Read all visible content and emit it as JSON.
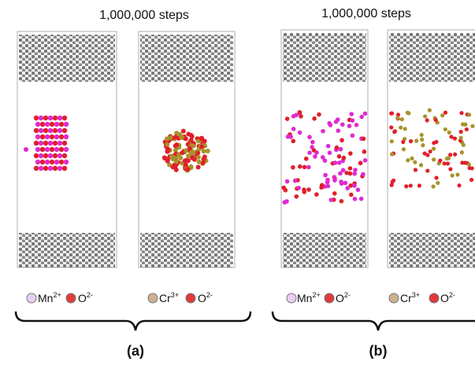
{
  "panels": [
    {
      "title": "1,000,000 steps",
      "label": "(a)",
      "legend": [
        {
          "symbol": "Mn",
          "charge": "2+"
        },
        {
          "symbol": "O",
          "charge": "2-"
        },
        {
          "symbol": "Cr",
          "charge": "3+"
        },
        {
          "symbol": "O",
          "charge": "2-"
        }
      ]
    },
    {
      "title": "1,000,000 steps",
      "label": "(b)",
      "legend": [
        {
          "symbol": "Mn",
          "charge": "2+"
        },
        {
          "symbol": "O",
          "charge": "2-"
        },
        {
          "symbol": "Cr",
          "charge": "3+"
        },
        {
          "symbol": "O",
          "charge": "2-"
        }
      ]
    }
  ]
}
